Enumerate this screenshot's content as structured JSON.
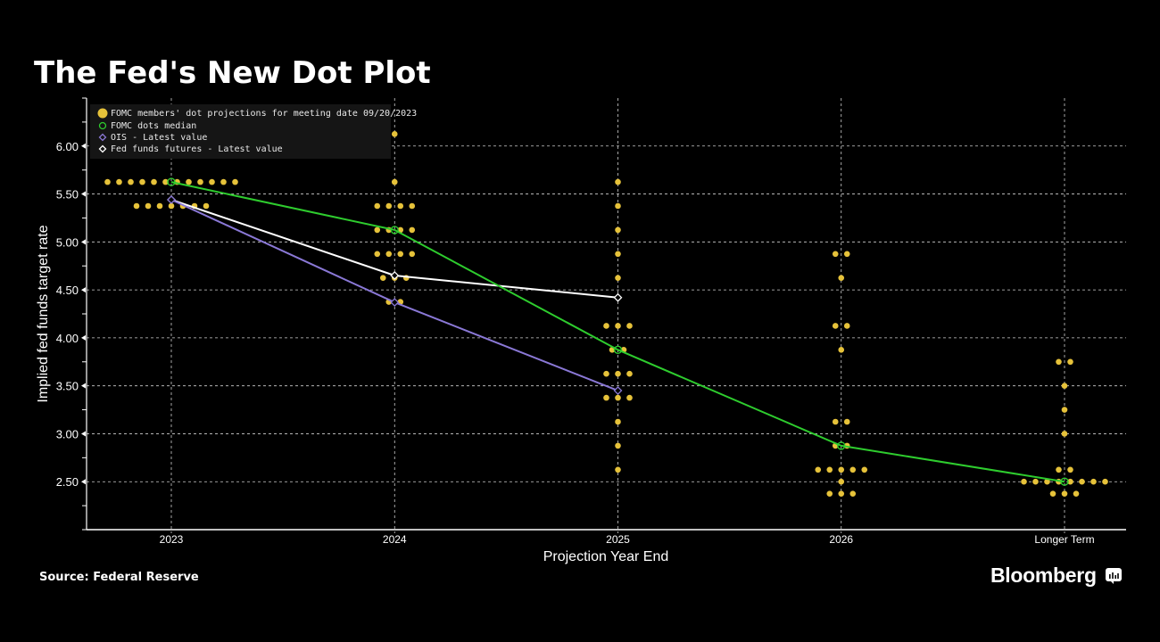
{
  "page": {
    "title": "The Fed's New Dot Plot",
    "source": "Source: Federal Reserve",
    "brand": "Bloomberg",
    "brand_icon": "bloomberg-chart-icon"
  },
  "colors": {
    "background": "#000000",
    "dots": "#e6c23a",
    "median": "#2ecc2e",
    "ois": "#8a78d6",
    "futures": "#ffffff",
    "grid": "#cfcfcf"
  },
  "chart_data": {
    "type": "scatter",
    "title": "The Fed's New Dot Plot",
    "xlabel": "Projection Year End",
    "ylabel": "Implied fed funds target rate",
    "categories": [
      "2023",
      "2024",
      "2025",
      "2026",
      "Longer Term"
    ],
    "ylim": [
      2.0,
      6.5
    ],
    "yticks": [
      2.5,
      3.0,
      3.5,
      4.0,
      4.5,
      5.0,
      5.5,
      6.0
    ],
    "ytick_labels": [
      "2.50",
      "3.00",
      "3.50",
      "4.00",
      "4.50",
      "5.00",
      "5.50",
      "6.00"
    ],
    "grid": true,
    "legend_position": "top-left",
    "legend": [
      "FOMC members' dot projections for meeting date 09/20/2023",
      "FOMC dots median",
      "OIS - Latest value",
      "Fed funds futures - Latest value"
    ],
    "dots": [
      {
        "category": "2023",
        "levels": [
          {
            "rate": 5.625,
            "count": 12
          },
          {
            "rate": 5.375,
            "count": 7
          }
        ]
      },
      {
        "category": "2024",
        "levels": [
          {
            "rate": 6.125,
            "count": 1
          },
          {
            "rate": 5.625,
            "count": 1
          },
          {
            "rate": 5.375,
            "count": 4
          },
          {
            "rate": 5.125,
            "count": 4
          },
          {
            "rate": 4.875,
            "count": 4
          },
          {
            "rate": 4.625,
            "count": 3
          },
          {
            "rate": 4.375,
            "count": 2
          }
        ]
      },
      {
        "category": "2025",
        "levels": [
          {
            "rate": 5.625,
            "count": 1
          },
          {
            "rate": 5.375,
            "count": 1
          },
          {
            "rate": 5.125,
            "count": 1
          },
          {
            "rate": 4.875,
            "count": 1
          },
          {
            "rate": 4.625,
            "count": 1
          },
          {
            "rate": 4.125,
            "count": 3
          },
          {
            "rate": 3.875,
            "count": 2
          },
          {
            "rate": 3.625,
            "count": 3
          },
          {
            "rate": 3.375,
            "count": 3
          },
          {
            "rate": 3.125,
            "count": 1
          },
          {
            "rate": 2.875,
            "count": 1
          },
          {
            "rate": 2.625,
            "count": 1
          }
        ]
      },
      {
        "category": "2026",
        "levels": [
          {
            "rate": 4.875,
            "count": 2
          },
          {
            "rate": 4.625,
            "count": 1
          },
          {
            "rate": 4.125,
            "count": 2
          },
          {
            "rate": 3.875,
            "count": 1
          },
          {
            "rate": 3.125,
            "count": 2
          },
          {
            "rate": 2.875,
            "count": 2
          },
          {
            "rate": 2.625,
            "count": 5
          },
          {
            "rate": 2.5,
            "count": 1
          },
          {
            "rate": 2.375,
            "count": 3
          }
        ]
      },
      {
        "category": "Longer Term",
        "levels": [
          {
            "rate": 3.75,
            "count": 2
          },
          {
            "rate": 3.5,
            "count": 1
          },
          {
            "rate": 3.25,
            "count": 1
          },
          {
            "rate": 3.0,
            "count": 1
          },
          {
            "rate": 2.625,
            "count": 2
          },
          {
            "rate": 2.5,
            "count": 8
          },
          {
            "rate": 2.375,
            "count": 3
          }
        ]
      }
    ],
    "series": [
      {
        "name": "FOMC dots median",
        "categories": [
          "2023",
          "2024",
          "2025",
          "2026",
          "Longer Term"
        ],
        "values": [
          5.625,
          5.125,
          3.875,
          2.875,
          2.5
        ]
      },
      {
        "name": "OIS - Latest value",
        "categories": [
          "2023",
          "2024",
          "2025"
        ],
        "values": [
          5.44,
          4.37,
          3.45
        ]
      },
      {
        "name": "Fed funds futures - Latest value",
        "categories": [
          "2023",
          "2024",
          "2025"
        ],
        "values": [
          5.44,
          4.65,
          4.42
        ]
      }
    ]
  }
}
